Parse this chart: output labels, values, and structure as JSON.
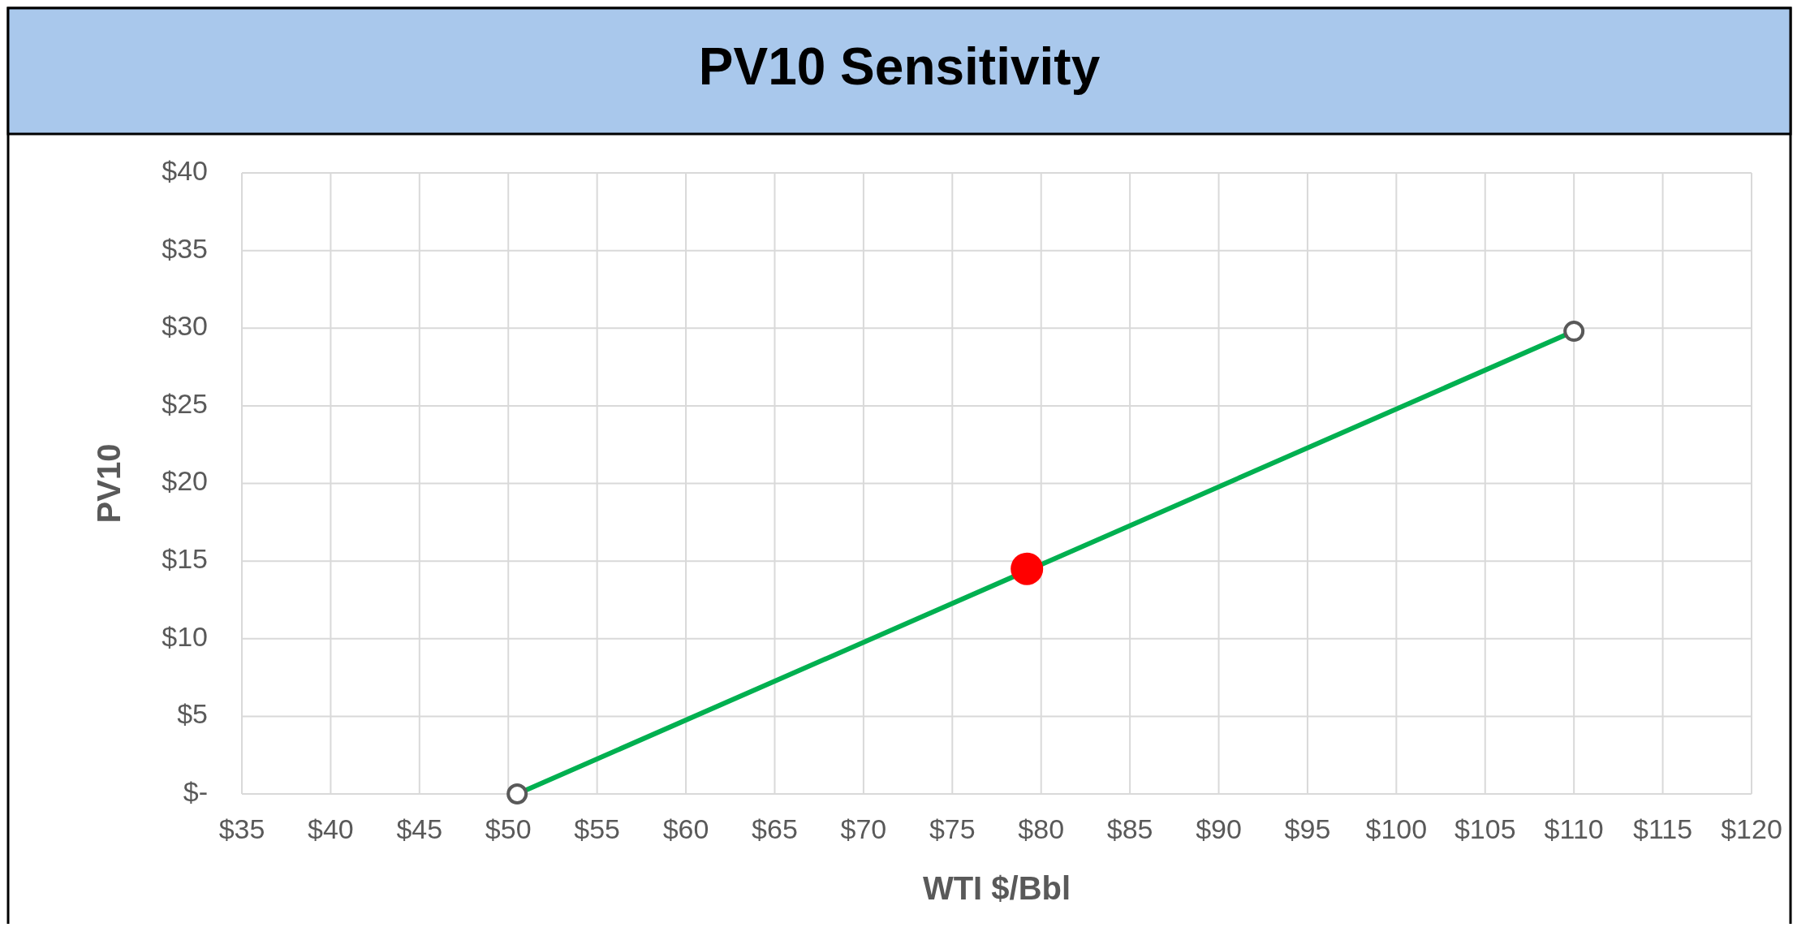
{
  "chart_data": {
    "type": "line",
    "title": "PV10 Sensitivity",
    "xlabel": "WTI $/Bbl",
    "ylabel": "PV10",
    "xlim": [
      35,
      120
    ],
    "xticks": [
      {
        "value": 35,
        "label": "$35"
      },
      {
        "value": 40,
        "label": "$40"
      },
      {
        "value": 45,
        "label": "$45"
      },
      {
        "value": 50,
        "label": "$50"
      },
      {
        "value": 55,
        "label": "$55"
      },
      {
        "value": 60,
        "label": "$60"
      },
      {
        "value": 65,
        "label": "$65"
      },
      {
        "value": 70,
        "label": "$70"
      },
      {
        "value": 75,
        "label": "$75"
      },
      {
        "value": 80,
        "label": "$80"
      },
      {
        "value": 85,
        "label": "$85"
      },
      {
        "value": 90,
        "label": "$90"
      },
      {
        "value": 95,
        "label": "$95"
      },
      {
        "value": 100,
        "label": "$100"
      },
      {
        "value": 105,
        "label": "$105"
      },
      {
        "value": 110,
        "label": "$110"
      },
      {
        "value": 115,
        "label": "$115"
      },
      {
        "value": 120,
        "label": "$120"
      }
    ],
    "ylim": [
      0,
      40
    ],
    "yticks": [
      {
        "value": 0,
        "label": "$-"
      },
      {
        "value": 5,
        "label": "$5"
      },
      {
        "value": 10,
        "label": "$10"
      },
      {
        "value": 15,
        "label": "$15"
      },
      {
        "value": 20,
        "label": "$20"
      },
      {
        "value": 25,
        "label": "$25"
      },
      {
        "value": 30,
        "label": "$30"
      },
      {
        "value": 35,
        "label": "$35"
      },
      {
        "value": 40,
        "label": "$40"
      }
    ],
    "grid": true,
    "marker": "circle",
    "series": [
      {
        "color": "#00b050",
        "x": [
          50.5,
          110
        ],
        "values": [
          0,
          29.8
        ]
      },
      {
        "type": "scatter",
        "color": "#ff0000",
        "x": [
          79.2
        ],
        "values": [
          14.5
        ]
      }
    ]
  }
}
